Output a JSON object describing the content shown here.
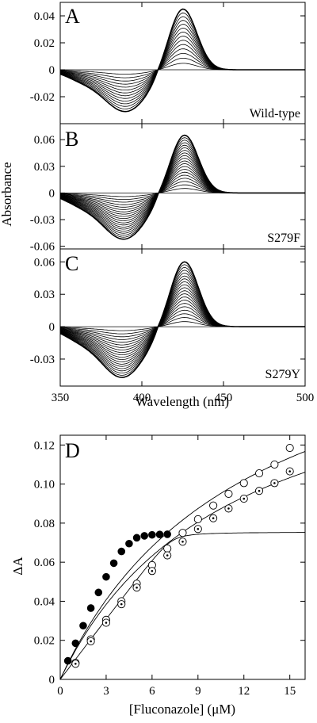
{
  "chart_data": [
    {
      "type": "line",
      "panel_label": "A",
      "annotation": "Wild-type",
      "xlim": [
        350,
        500
      ],
      "ylim": [
        -0.04,
        0.05
      ],
      "yticks": [
        0.04,
        0.02,
        0,
        -0.02
      ],
      "ytick_labels": [
        "0.04",
        "0.02",
        "0",
        "-0.02"
      ],
      "peak": {
        "x": 425,
        "max_value": 0.045
      },
      "trough": {
        "x": 390,
        "min_value": -0.031
      },
      "isosbestic_x": 415,
      "n_spectra": 14,
      "grid": false
    },
    {
      "type": "line",
      "panel_label": "B",
      "annotation": "S279F",
      "xlim": [
        350,
        500
      ],
      "ylim": [
        -0.063,
        0.078
      ],
      "yticks": [
        0.06,
        0.03,
        0,
        -0.03,
        -0.06
      ],
      "ytick_labels": [
        "0.06",
        "0.03",
        "0",
        "-0.03",
        "-0.06"
      ],
      "peak": {
        "x": 426,
        "max_value": 0.065
      },
      "trough": {
        "x": 389,
        "min_value": -0.052
      },
      "isosbestic_x": 413,
      "n_spectra": 20,
      "grid": false
    },
    {
      "type": "line",
      "panel_label": "C",
      "annotation": "S279Y",
      "xlim": [
        350,
        500
      ],
      "ylim": [
        -0.055,
        0.072
      ],
      "yticks": [
        0.06,
        0.03,
        0,
        -0.03
      ],
      "ytick_labels": [
        "0.06",
        "0.03",
        "0",
        "-0.03"
      ],
      "peak": {
        "x": 426,
        "max_value": 0.06
      },
      "trough": {
        "x": 388,
        "min_value": -0.047
      },
      "isosbestic_x": 414,
      "n_spectra": 20,
      "grid": false,
      "xticks": [
        350,
        400,
        450,
        500
      ],
      "xtick_labels": [
        "350",
        "400",
        "450",
        "500"
      ]
    },
    {
      "type": "scatter",
      "panel_label": "D",
      "xlabel": "[Fluconazole] (μM)",
      "ylabel": "ΔA",
      "xlim": [
        0,
        16
      ],
      "ylim": [
        0,
        0.125
      ],
      "xticks": [
        0,
        3,
        6,
        9,
        12,
        15
      ],
      "yticks": [
        0,
        0.02,
        0.04,
        0.06,
        0.08,
        0.1,
        0.12
      ],
      "xtick_labels": [
        "0",
        "3",
        "6",
        "9",
        "12",
        "15"
      ],
      "ytick_labels": [
        "0",
        "0.02",
        "0.04",
        "0.06",
        "0.08",
        "0.10",
        "0.12"
      ],
      "grid": false,
      "series": [
        {
          "marker": "filled-circle",
          "x": [
            0.5,
            1.0,
            1.5,
            2.0,
            2.5,
            3.0,
            3.5,
            4.0,
            4.5,
            5.0,
            5.5,
            6.0,
            6.5,
            7.0
          ],
          "values": [
            0.0095,
            0.0185,
            0.0275,
            0.0365,
            0.0445,
            0.0525,
            0.0595,
            0.0655,
            0.0695,
            0.0725,
            0.0735,
            0.074,
            0.0742,
            0.0743
          ]
        },
        {
          "marker": "open-circle",
          "x": [
            1.0,
            2.0,
            3.0,
            4.0,
            5.0,
            6.0,
            7.0,
            8.0,
            9.0,
            10.0,
            11.0,
            12.0,
            13.0,
            14.0,
            15.0
          ],
          "values": [
            0.0085,
            0.0205,
            0.0305,
            0.04,
            0.049,
            0.0585,
            0.067,
            0.075,
            0.082,
            0.089,
            0.095,
            0.1005,
            0.1055,
            0.11,
            0.1185
          ]
        },
        {
          "marker": "dotted-circle",
          "x": [
            1.0,
            2.0,
            3.0,
            4.0,
            5.0,
            6.0,
            7.0,
            8.0,
            9.0,
            10.0,
            11.0,
            12.0,
            13.0,
            14.0,
            15.0
          ],
          "values": [
            0.008,
            0.0195,
            0.029,
            0.0385,
            0.047,
            0.0555,
            0.0635,
            0.0705,
            0.077,
            0.0825,
            0.0875,
            0.0925,
            0.0965,
            0.1005,
            0.1065
          ]
        }
      ]
    }
  ],
  "shared_labels": {
    "spectra_ylabel": "Absorbance",
    "spectra_xlabel": "Wavelength (nm)"
  }
}
